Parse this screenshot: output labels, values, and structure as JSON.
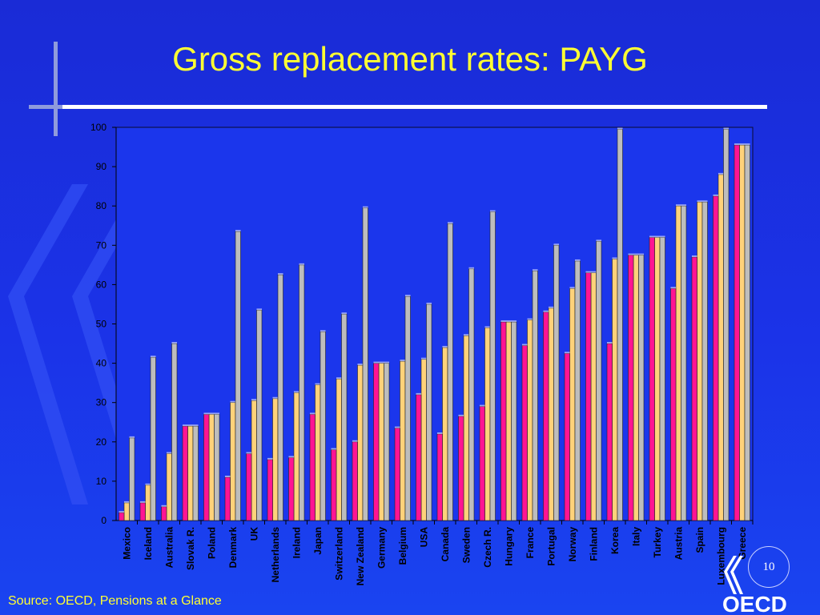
{
  "slide": {
    "title": "Gross replacement rates: PAYG",
    "source": "Source: OECD, Pensions at a Glance",
    "page_number": "10",
    "logo_text": "OECD"
  },
  "colors": {
    "background": "#1b33e8",
    "title": "#ffff33",
    "bar_low": "#ff1493",
    "bar_mid": "#ffd27a",
    "bar_high": "#bdbdbd"
  },
  "chart_data": {
    "type": "bar",
    "title": "",
    "xlabel": "",
    "ylabel": "",
    "ylim": [
      0,
      100
    ],
    "yticks": [
      0,
      10,
      20,
      30,
      40,
      50,
      60,
      70,
      80,
      90,
      100
    ],
    "grid": false,
    "legend": "none",
    "categories": [
      "Mexico",
      "Iceland",
      "Australia",
      "Slovak R.",
      "Poland",
      "Denmark",
      "UK",
      "Netherlands",
      "Ireland",
      "Japan",
      "Switzerland",
      "New Zealand",
      "Germany",
      "Belgium",
      "USA",
      "Canada",
      "Sweden",
      "Czech R.",
      "Hungary",
      "France",
      "Portugal",
      "Norway",
      "Finland",
      "Korea",
      "Italy",
      "Turkey",
      "Austria",
      "Spain",
      "Luxembourg",
      "Greece"
    ],
    "series": [
      {
        "values": [
          2,
          4.5,
          3.5,
          24,
          27,
          11,
          17,
          15.5,
          16,
          27,
          18,
          20,
          40,
          23.5,
          32,
          22,
          26.5,
          29,
          50.5,
          44.5,
          53,
          42.5,
          63,
          45,
          67.5,
          72,
          59,
          67,
          82.5,
          95.5
        ]
      },
      {
        "values": [
          4.5,
          9,
          17,
          24,
          27,
          30,
          30.5,
          31,
          32.5,
          34.5,
          36,
          39.5,
          40,
          40.5,
          41,
          44,
          47,
          49,
          50.5,
          51,
          54,
          59,
          63,
          66.5,
          67.5,
          72,
          80,
          81,
          88,
          95.5
        ]
      },
      {
        "values": [
          21,
          41.5,
          45,
          24,
          27,
          73.5,
          53.5,
          62.5,
          65,
          48,
          52.5,
          79.5,
          40,
          57,
          55,
          75.5,
          64,
          78.5,
          50.5,
          63.5,
          70,
          66,
          71,
          99.5,
          67.5,
          72,
          80,
          81,
          99.5,
          95.5
        ]
      }
    ]
  }
}
